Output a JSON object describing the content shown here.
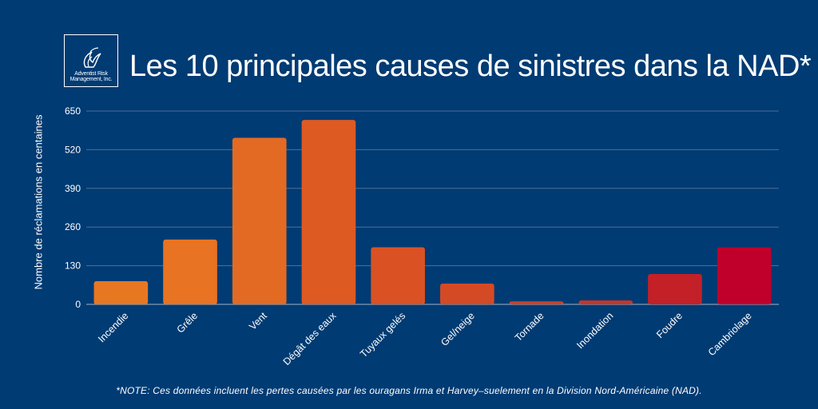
{
  "logo": {
    "line1": "Adventist Risk",
    "line2": "Management, Inc."
  },
  "title": "Les 10 principales causes de sinistres dans la NAD*",
  "note": "*NOTE: Ces données incluent les pertes causées par les ouragans Irma et Harvey–suelement en la Division Nord-Américaine (NAD).",
  "colors": {
    "background": "#003b73",
    "bars": [
      "#e87722",
      "#e87322",
      "#e36a23",
      "#de5a23",
      "#da5124",
      "#d44a25",
      "#cf4226",
      "#c93527",
      "#c42028",
      "#c0002a"
    ]
  },
  "chart_data": {
    "type": "bar",
    "title": "Les 10 principales causes de sinistres dans la NAD*",
    "xlabel": "",
    "ylabel": "Nombre de réclamations en centaines",
    "ylim": [
      0,
      650
    ],
    "yticks": [
      0,
      130,
      260,
      390,
      520,
      650
    ],
    "categories": [
      "Incendie",
      "Grêle",
      "Vent",
      "Dégât des eaux",
      "Tuyaux gelés",
      "Gel/neige",
      "Tornade",
      "Inondation",
      "Foudre",
      "Cambriolage"
    ],
    "values": [
      78,
      218,
      560,
      620,
      192,
      70,
      10,
      13,
      102,
      192
    ],
    "grid": true,
    "legend": "none"
  }
}
